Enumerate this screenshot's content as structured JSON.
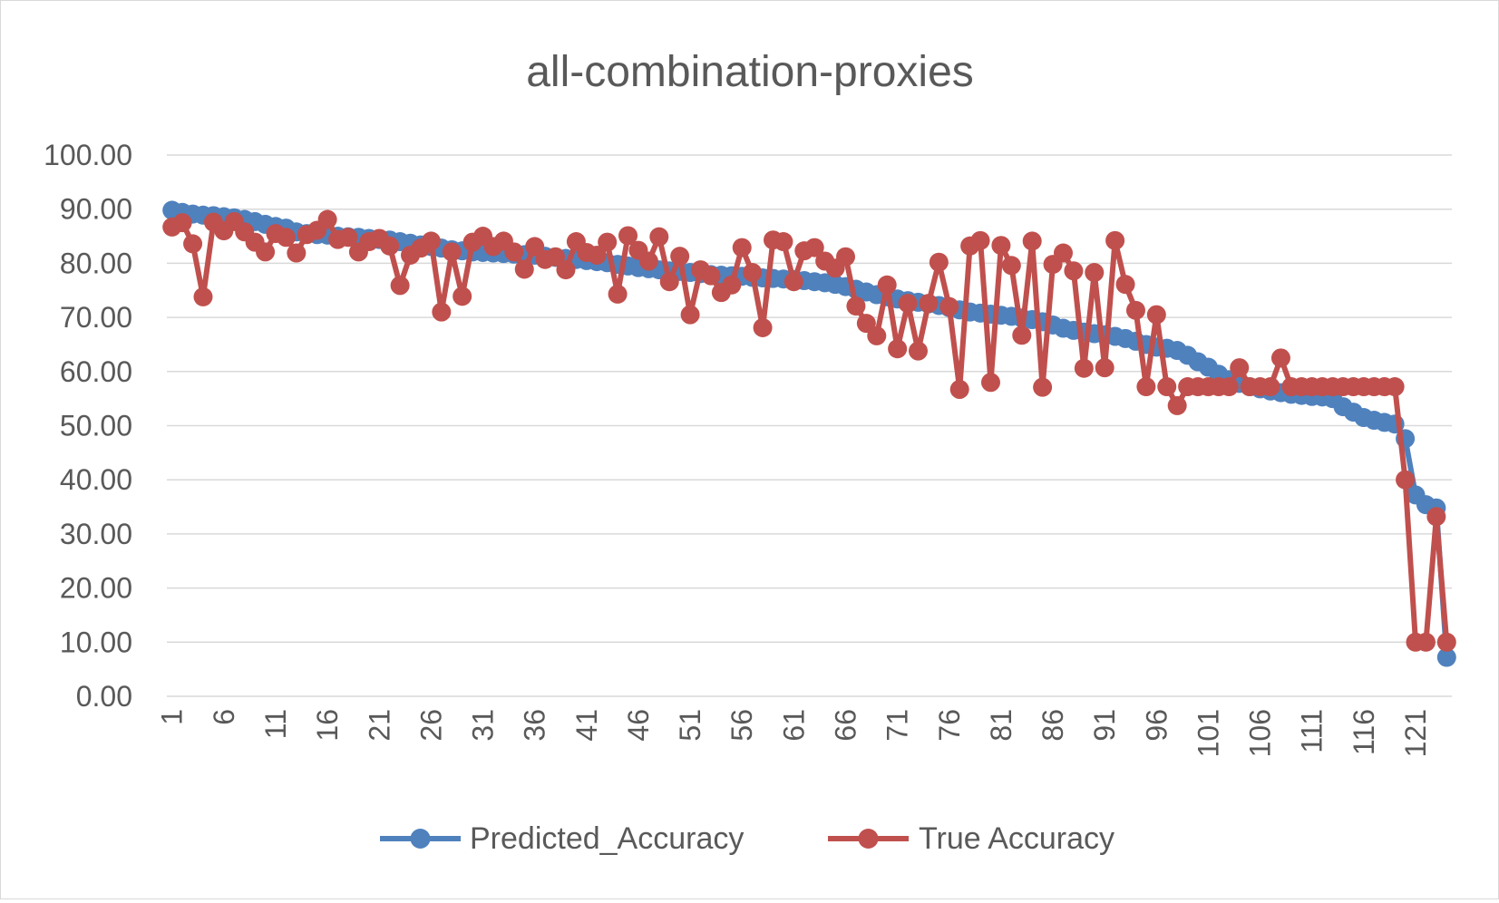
{
  "chart_data": {
    "type": "line",
    "title": "all-combination-proxies",
    "xlabel": "",
    "ylabel": "",
    "ylim": [
      0,
      100
    ],
    "y_ticks": [
      "0.00",
      "10.00",
      "20.00",
      "30.00",
      "40.00",
      "50.00",
      "60.00",
      "70.00",
      "80.00",
      "90.00",
      "100.00"
    ],
    "x": [
      1,
      2,
      3,
      4,
      5,
      6,
      7,
      8,
      9,
      10,
      11,
      12,
      13,
      14,
      15,
      16,
      17,
      18,
      19,
      20,
      21,
      22,
      23,
      24,
      25,
      26,
      27,
      28,
      29,
      30,
      31,
      32,
      33,
      34,
      35,
      36,
      37,
      38,
      39,
      40,
      41,
      42,
      43,
      44,
      45,
      46,
      47,
      48,
      49,
      50,
      51,
      52,
      53,
      54,
      55,
      56,
      57,
      58,
      59,
      60,
      61,
      62,
      63,
      64,
      65,
      66,
      67,
      68,
      69,
      70,
      71,
      72,
      73,
      74,
      75,
      76,
      77,
      78,
      79,
      80,
      81,
      82,
      83,
      84,
      85,
      86,
      87,
      88,
      89,
      90,
      91,
      92,
      93,
      94,
      95,
      96,
      97,
      98,
      99,
      100,
      101,
      102,
      103,
      104,
      105,
      106,
      107,
      108,
      109,
      110,
      111,
      112,
      113,
      114,
      115,
      116,
      117,
      118,
      119,
      120,
      121,
      122,
      123,
      124
    ],
    "x_tick_labels": [
      "1",
      "6",
      "11",
      "16",
      "21",
      "26",
      "31",
      "36",
      "41",
      "46",
      "51",
      "56",
      "61",
      "66",
      "71",
      "76",
      "81",
      "86",
      "91",
      "96",
      "101",
      "106",
      "111",
      "116",
      "121"
    ],
    "grid": "horizontal",
    "legend_position": "bottom",
    "series": [
      {
        "name": "Predicted_Accuracy",
        "color": "#4f81bd",
        "values": [
          89.8,
          89.4,
          89.1,
          88.9,
          88.8,
          88.6,
          88.4,
          88.1,
          87.7,
          87.2,
          86.8,
          86.5,
          85.8,
          85.5,
          85.3,
          85.2,
          85.0,
          84.9,
          84.8,
          84.6,
          84.4,
          84.3,
          84.0,
          83.7,
          83.4,
          83.1,
          82.8,
          82.5,
          82.3,
          82.1,
          82.0,
          81.9,
          81.8,
          81.7,
          81.6,
          81.5,
          81.3,
          81.1,
          80.9,
          80.7,
          80.5,
          80.3,
          80.1,
          79.8,
          79.5,
          79.2,
          79.0,
          78.8,
          78.6,
          78.5,
          78.3,
          78.1,
          77.9,
          77.8,
          77.7,
          77.6,
          77.4,
          77.3,
          77.2,
          77.1,
          77.0,
          76.8,
          76.6,
          76.4,
          76.1,
          75.7,
          75.2,
          74.7,
          74.2,
          73.8,
          73.4,
          73.1,
          72.8,
          72.5,
          72.2,
          71.8,
          71.4,
          71.0,
          70.8,
          70.6,
          70.4,
          70.2,
          69.9,
          69.6,
          69.2,
          68.6,
          68.0,
          67.6,
          67.3,
          67.0,
          66.8,
          66.5,
          66.1,
          65.6,
          65.0,
          64.5,
          64.3,
          63.9,
          63.0,
          61.8,
          60.8,
          59.5,
          58.5,
          57.8,
          57.2,
          56.8,
          56.4,
          56.1,
          55.8,
          55.6,
          55.4,
          55.3,
          55.0,
          53.5,
          52.5,
          51.5,
          51.0,
          50.6,
          50.3,
          47.6,
          37.2,
          35.4,
          34.8,
          7.2
        ]
      },
      {
        "name": "True Accuracy",
        "color": "#c0504d",
        "values": [
          86.7,
          87.5,
          83.6,
          73.8,
          87.6,
          86.0,
          87.7,
          85.8,
          83.9,
          82.1,
          85.5,
          84.8,
          81.9,
          85.3,
          86.1,
          88.1,
          84.4,
          84.8,
          82.1,
          84.0,
          84.6,
          83.2,
          75.9,
          81.5,
          82.8,
          84.1,
          71.0,
          82.1,
          73.9,
          83.9,
          85.0,
          83.1,
          84.1,
          82.1,
          78.9,
          83.1,
          80.7,
          81.2,
          78.8,
          84.0,
          82.0,
          81.5,
          83.9,
          74.3,
          85.1,
          82.4,
          80.4,
          84.9,
          76.6,
          81.3,
          70.5,
          78.8,
          77.7,
          74.6,
          76.0,
          82.9,
          78.3,
          68.1,
          84.3,
          84.0,
          76.6,
          82.3,
          82.9,
          80.4,
          79.1,
          81.2,
          72.1,
          68.9,
          66.6,
          76.0,
          64.2,
          72.6,
          63.8,
          72.6,
          80.2,
          72.0,
          56.7,
          83.2,
          84.2,
          58.0,
          83.3,
          79.6,
          66.7,
          84.1,
          57.1,
          79.8,
          81.9,
          78.6,
          60.6,
          78.3,
          60.7,
          84.2,
          76.1,
          71.3,
          57.2,
          70.5,
          57.2,
          53.7,
          57.2,
          57.2,
          57.2,
          57.2,
          57.2,
          60.7,
          57.2,
          57.2,
          57.2,
          62.5,
          57.2,
          57.2,
          57.2,
          57.2,
          57.2,
          57.2,
          57.2,
          57.2,
          57.2,
          57.2,
          57.2,
          40.0,
          10.0,
          10.0,
          33.2,
          10.0
        ]
      }
    ]
  }
}
